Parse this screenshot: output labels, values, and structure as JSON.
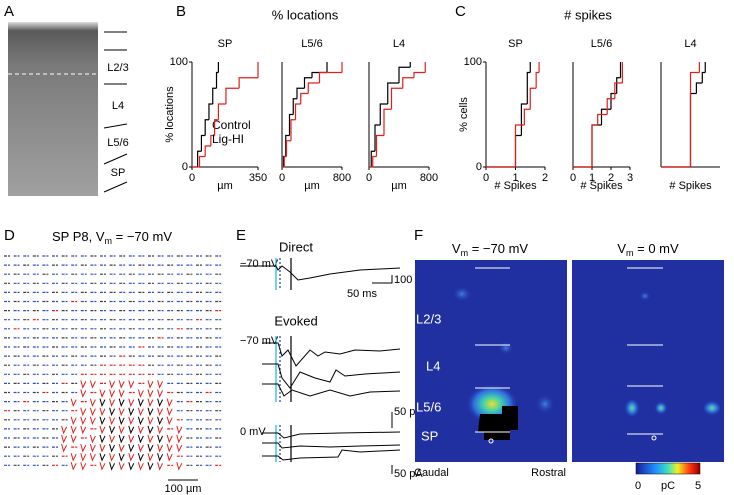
{
  "panel_labels": [
    "A",
    "B",
    "C",
    "D",
    "E",
    "F"
  ],
  "panel_a": {
    "layers": [
      "L2/3",
      "L4",
      "L5/6",
      "SP"
    ]
  },
  "panel_b": {
    "title": "% locations"
  },
  "panel_c": {
    "title": "# spikes"
  },
  "chart_data": [
    {
      "type": "step",
      "title": "SP",
      "x_label": "µm",
      "y_label": "% locations",
      "xlim": [
        0,
        350
      ],
      "xticks": [
        0,
        350
      ],
      "ylim": [
        0,
        100
      ],
      "yticks": [
        0,
        100
      ],
      "series": [
        {
          "name": "Control",
          "color": "#000000",
          "x": [
            0,
            30,
            50,
            70,
            90,
            110,
            130,
            140
          ],
          "values": [
            0,
            15,
            30,
            45,
            60,
            75,
            90,
            100
          ]
        },
        {
          "name": "Lig-HI",
          "color": "#e0201b",
          "x": [
            0,
            40,
            70,
            100,
            120,
            140,
            180,
            250,
            350
          ],
          "values": [
            0,
            10,
            20,
            30,
            45,
            60,
            75,
            85,
            100
          ]
        }
      ]
    },
    {
      "type": "step",
      "title": "L5/6",
      "x_label": "µm",
      "xlim": [
        0,
        800
      ],
      "xticks": [
        0,
        800
      ],
      "ylim": [
        0,
        100
      ],
      "series": [
        {
          "color": "#000000",
          "x": [
            0,
            20,
            50,
            100,
            150,
            200,
            300,
            400,
            600
          ],
          "values": [
            0,
            10,
            30,
            50,
            65,
            75,
            85,
            90,
            100
          ]
        },
        {
          "color": "#e0201b",
          "x": [
            0,
            30,
            60,
            120,
            180,
            250,
            350,
            500,
            800
          ],
          "values": [
            0,
            10,
            25,
            45,
            60,
            70,
            80,
            90,
            100
          ]
        }
      ]
    },
    {
      "type": "step",
      "title": "L4",
      "x_label": "µm",
      "xlim": [
        0,
        800
      ],
      "xticks": [
        0,
        800
      ],
      "ylim": [
        0,
        100
      ],
      "series": [
        {
          "color": "#000000",
          "x": [
            0,
            30,
            80,
            150,
            250,
            400,
            550
          ],
          "values": [
            0,
            15,
            40,
            60,
            80,
            95,
            100
          ]
        },
        {
          "color": "#e0201b",
          "x": [
            0,
            50,
            100,
            200,
            300,
            450,
            600,
            750
          ],
          "values": [
            0,
            10,
            30,
            55,
            75,
            85,
            90,
            100
          ]
        }
      ]
    },
    {
      "type": "step",
      "title": "SP",
      "x_label": "# Spikes",
      "y_label": "% cells",
      "xlim": [
        0,
        2
      ],
      "xticks": [
        0,
        1,
        2
      ],
      "ylim": [
        0,
        100
      ],
      "yticks": [
        0,
        100
      ],
      "series": [
        {
          "color": "#000000",
          "x": [
            0,
            1,
            1.2,
            1.4,
            1.5
          ],
          "values": [
            0,
            30,
            60,
            90,
            100
          ]
        },
        {
          "color": "#e0201b",
          "x": [
            0,
            1,
            1.3,
            1.5,
            1.7,
            1.8
          ],
          "values": [
            0,
            40,
            55,
            75,
            90,
            100
          ]
        }
      ]
    },
    {
      "type": "step",
      "title": "L5/6",
      "x_label": "# Spikes",
      "xlim": [
        0,
        3
      ],
      "xticks": [
        0,
        1,
        2,
        3
      ],
      "ylim": [
        0,
        100
      ],
      "series": [
        {
          "color": "#000000",
          "x": [
            0,
            1,
            1.5,
            2,
            2.3,
            2.5
          ],
          "values": [
            0,
            40,
            55,
            70,
            85,
            100
          ]
        },
        {
          "color": "#e0201b",
          "x": [
            0,
            1,
            1.3,
            1.8,
            2.2,
            2.6
          ],
          "values": [
            0,
            40,
            50,
            65,
            80,
            100
          ]
        }
      ]
    },
    {
      "type": "step",
      "title": "L4",
      "x_label": "# Spikes",
      "xlim": [
        0,
        2
      ],
      "ylim": [
        0,
        100
      ],
      "series": [
        {
          "color": "#000000",
          "x": [
            0,
            1,
            1.2,
            1.4,
            1.5
          ],
          "values": [
            0,
            70,
            80,
            90,
            100
          ]
        },
        {
          "color": "#e0201b",
          "x": [
            0,
            1,
            1.3
          ],
          "values": [
            0,
            90,
            100
          ]
        }
      ]
    }
  ],
  "panel_d": {
    "title_prefix": "SP P8, V",
    "title_sub": "m",
    "title_suffix": " = −70 mV",
    "scale": "100 µm"
  },
  "panel_e": {
    "direct": "Direct",
    "evoked": "Evoked",
    "hold_direct": "−70 mV",
    "hold_evoked": "−70 mV",
    "hold_zero": "0 mV",
    "scale_direct_y": "100 pA",
    "scale_direct_x": "50 ms",
    "scale_evoked_y": "50 pA",
    "scale_zero_y": "50 pA"
  },
  "panel_f": {
    "left_prefix": "V",
    "left_sub": "m",
    "left_suffix": " = −70 mV",
    "right_prefix": "V",
    "right_sub": "m",
    "right_suffix": " = 0 mV",
    "layers": [
      "L2/3",
      "L4",
      "L5/6",
      "SP"
    ],
    "caudal": "Caudal",
    "rostral": "Rostral",
    "cbar_min": "0",
    "cbar_unit": "pC",
    "cbar_max": "5"
  }
}
